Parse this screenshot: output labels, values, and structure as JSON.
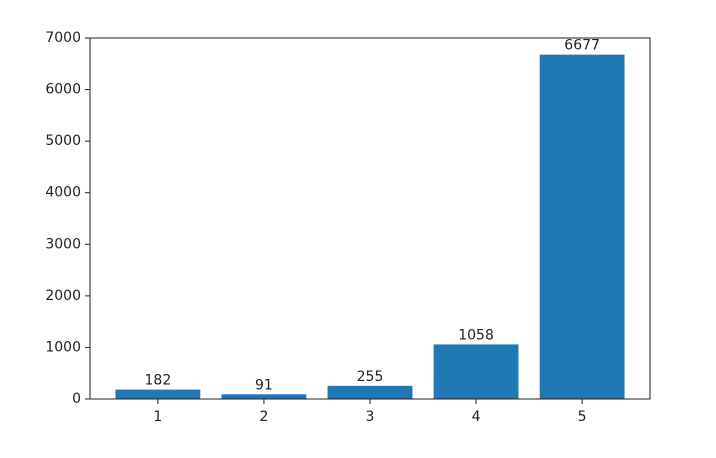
{
  "chart_data": {
    "type": "bar",
    "categories": [
      "1",
      "2",
      "3",
      "4",
      "5"
    ],
    "values": [
      182,
      91,
      255,
      1058,
      6677
    ],
    "color": "#1f77b4",
    "ylim": [
      0,
      7000
    ],
    "yticks": [
      0,
      1000,
      2000,
      3000,
      4000,
      5000,
      6000,
      7000
    ]
  }
}
